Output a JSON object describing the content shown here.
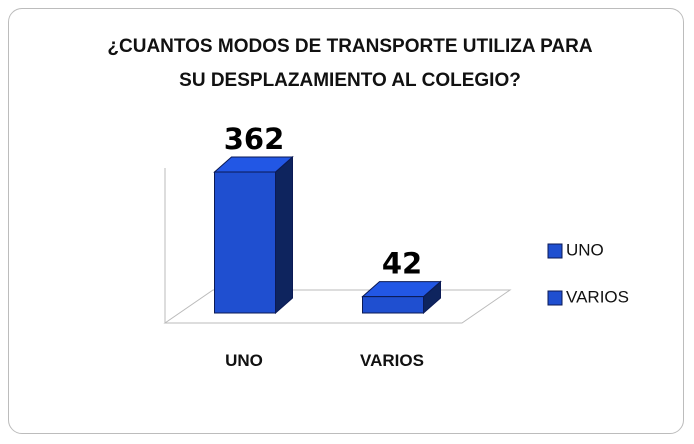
{
  "chart_data": {
    "type": "bar3d",
    "title": "¿CUANTOS MODOS DE TRANSPORTE UTILIZA PARA SU DESPLAZAMIENTO AL COLEGIO?",
    "categories": [
      "UNO",
      "VARIOS"
    ],
    "values": [
      362,
      42
    ],
    "color": "#1f4fd0",
    "legend": "right"
  }
}
